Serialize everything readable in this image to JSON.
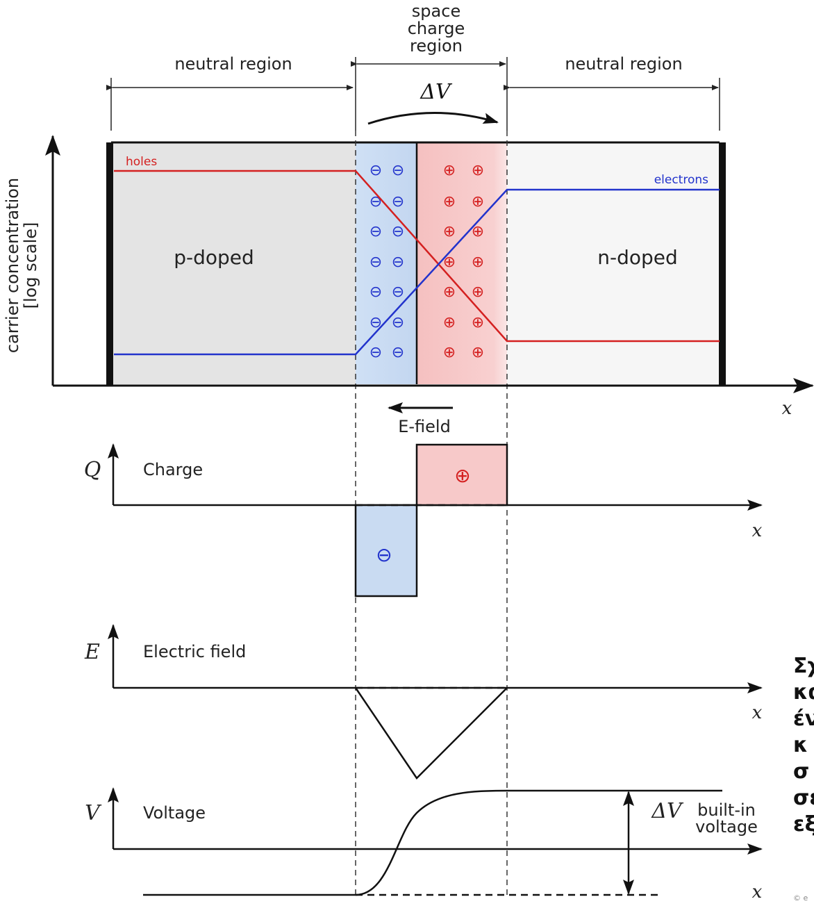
{
  "labels": {
    "space_charge_region": [
      "space",
      "charge",
      "region"
    ],
    "neutral_left": "neutral region",
    "neutral_right": "neutral region",
    "delta_v_top": "ΔV",
    "holes": "holes",
    "electrons": "electrons",
    "p_doped": "p-doped",
    "n_doped": "n-doped",
    "y_axis_label_1": "carrier concentration",
    "y_axis_label_2": "[log scale]",
    "x_axis": "x",
    "e_field": "E-field",
    "charge_symbol": "Q",
    "charge_label": "Charge",
    "efield_symbol": "E",
    "efield_label": "Electric field",
    "voltage_symbol": "V",
    "voltage_label": "Voltage",
    "delta_v_bottom": "ΔV",
    "builtin_1": "built-in",
    "builtin_2": "voltage",
    "minus_sign": "⊖",
    "plus_sign": "⊕"
  },
  "caption_lines": [
    "Σχ",
    "κα",
    "έν",
    " κ",
    " σ",
    "σε",
    "εξ"
  ],
  "copyright": "© e",
  "colors": {
    "holes": "#d42020",
    "electrons": "#2233cc",
    "p_region": "#e4e4e4",
    "n_region": "#f6f6f6",
    "depletion_neg": "#c9dbf2",
    "depletion_pos": "#f7c9c9"
  }
}
